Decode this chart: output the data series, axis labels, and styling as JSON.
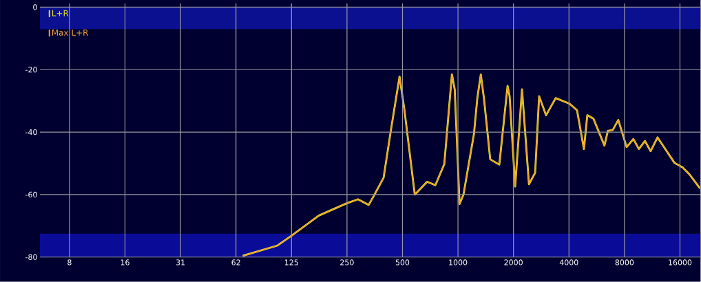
{
  "chart_data": {
    "type": "line",
    "x": [
      68,
      105,
      124,
      176,
      249,
      287,
      328,
      351,
      395,
      431,
      482,
      512,
      583,
      680,
      754,
      843,
      927,
      960,
      1020,
      1071,
      1220,
      1274,
      1330,
      1387,
      1496,
      1676,
      1858,
      1906,
      2043,
      2225,
      2427,
      2622,
      2755,
      3004,
      3388,
      4028,
      4423,
      4822,
      5029,
      5430,
      6230,
      6502,
      6915,
      7406,
      8221,
      8938,
      9578,
      10340,
      11086,
      12085,
      14930,
      16560,
      18125,
      20550
    ],
    "series": [
      {
        "name": "L+R",
        "color": "#e8e020",
        "values": [
          -79.6,
          -76.3,
          -73.3,
          -66.7,
          -62.8,
          -61.5,
          -63.3,
          -60.2,
          -54.6,
          -40,
          -22.2,
          -32.8,
          -60,
          -55.9,
          -57,
          -50.2,
          -21.5,
          -26.3,
          -63,
          -60,
          -40.7,
          -29,
          -21.5,
          -29.8,
          -48.7,
          -50.4,
          -25.2,
          -28.5,
          -57.4,
          -26.3,
          -56.7,
          -53,
          -28.5,
          -34.6,
          -29.1,
          -30.9,
          -33,
          -45.4,
          -34.6,
          -35.7,
          -44.3,
          -39.6,
          -39.3,
          -36.1,
          -44.8,
          -42.2,
          -45.4,
          -42.8,
          -46.1,
          -41.7,
          -49.8,
          -51.3,
          -53.7,
          -58
        ]
      },
      {
        "name": "Max L+R",
        "color": "#f0a030",
        "values": [
          -79.6,
          -76.3,
          -73.3,
          -66.7,
          -62.8,
          -61.5,
          -63.3,
          -60.2,
          -54.6,
          -40,
          -22.2,
          -32.8,
          -60,
          -55.9,
          -57,
          -50.2,
          -21.5,
          -26.3,
          -63,
          -60,
          -40.7,
          -29,
          -21.5,
          -29.8,
          -48.7,
          -50.4,
          -25.2,
          -28.5,
          -57.4,
          -26.3,
          -56.7,
          -53,
          -28.5,
          -34.6,
          -29.1,
          -30.9,
          -33,
          -45.4,
          -34.6,
          -35.7,
          -44.3,
          -39.6,
          -39.3,
          -36.1,
          -44.8,
          -42.2,
          -45.4,
          -42.8,
          -46.1,
          -41.7,
          -49.8,
          -51.3,
          -53.7,
          -58
        ]
      }
    ],
    "log": "x",
    "xlim": [
      5.4,
      20700
    ],
    "ylim": [
      -80,
      1.2
    ],
    "xticks": [
      {
        "value": 7.8125,
        "label": "8"
      },
      {
        "value": 15.625,
        "label": "16"
      },
      {
        "value": 31.25,
        "label": "31"
      },
      {
        "value": 62.5,
        "label": "62"
      },
      125,
      250,
      500,
      1000,
      2000,
      4000,
      8000,
      16000
    ],
    "yticks": [
      0,
      -20,
      -40,
      -60,
      -80
    ],
    "bands": [
      {
        "axis": "y",
        "from": 0,
        "to": -7,
        "color": "#0a1090"
      },
      {
        "axis": "y",
        "from": -72.5,
        "to": -80,
        "color": "#0a0c98"
      }
    ],
    "grid": true,
    "legend": "top left",
    "line_style": "solid",
    "marker": "none"
  }
}
